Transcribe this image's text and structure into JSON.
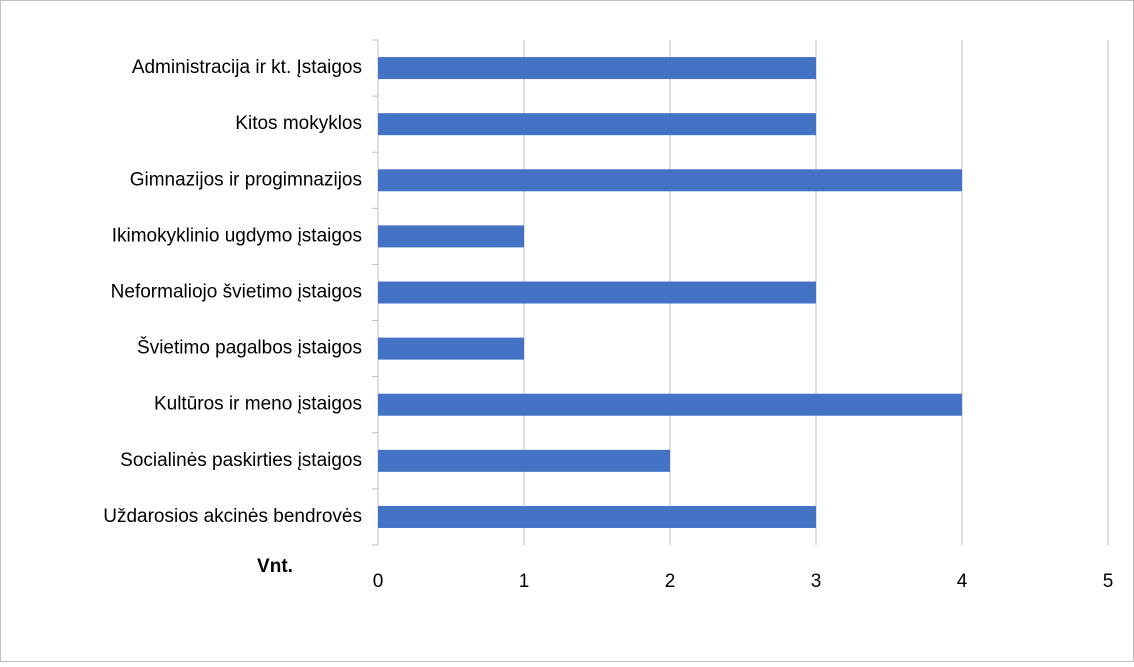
{
  "chart_data": {
    "type": "hbar",
    "categories": [
      "Administracija ir kt. Įstaigos",
      "Kitos mokyklos",
      "Gimnazijos ir progimnazijos",
      "Ikimokyklinio ugdymo įstaigos",
      "Neformaliojo švietimo įstaigos",
      "Švietimo pagalbos įstaigos",
      "Kultūros ir meno įstaigos",
      "Socialinės paskirties įstaigos",
      "Uždarosios akcinės bendrovės"
    ],
    "values": [
      3,
      3,
      4,
      1,
      3,
      1,
      4,
      2,
      3
    ],
    "color": "#4472c4",
    "x_label": "Vnt.",
    "xlim": [
      0,
      5
    ],
    "xticks": [
      0,
      1,
      2,
      3,
      4,
      5
    ],
    "grid": true
  }
}
